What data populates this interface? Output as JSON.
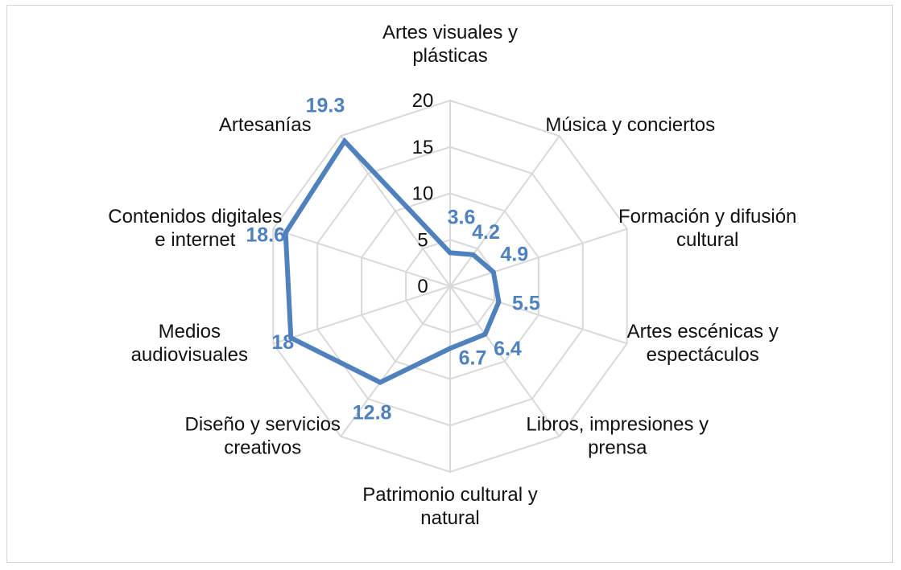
{
  "chart_data": {
    "type": "radar",
    "title": "",
    "categories": [
      "Artes visuales y plásticas",
      "Música y conciertos",
      "Formación y difusión cultural",
      "Artes escénicas y espectáculos",
      "Libros, impresiones y prensa",
      "Patrimonio cultural y natural",
      "Diseño y servicios creativos",
      "Medios audiovisuales",
      "Contenidos digitales e internet",
      "Artesanías"
    ],
    "category_lines": [
      [
        "Artes visuales y",
        "plásticas"
      ],
      [
        "Música y conciertos"
      ],
      [
        "Formación y difusión",
        "cultural"
      ],
      [
        "Artes escénicas y",
        "espectáculos"
      ],
      [
        "Libros, impresiones y",
        "prensa"
      ],
      [
        "Patrimonio cultural y",
        "natural"
      ],
      [
        "Diseño y servicios",
        "creativos"
      ],
      [
        "Medios",
        "audiovisuales"
      ],
      [
        "Contenidos digitales",
        "e internet"
      ],
      [
        "Artesanías"
      ]
    ],
    "values": [
      3.6,
      4.2,
      4.9,
      5.5,
      6.4,
      6.7,
      12.8,
      18,
      18.6,
      19.3
    ],
    "value_labels": [
      "3.6",
      "4.2",
      "4.9",
      "5.5",
      "6.4",
      "6.7",
      "12.8",
      "18",
      "18.6",
      "19.3"
    ],
    "rlim": [
      0,
      20
    ],
    "rticks": [
      0,
      5,
      10,
      15,
      20
    ],
    "rtick_labels": [
      "0",
      "5",
      "10",
      "15",
      "20"
    ],
    "series_color": "#4f81bd",
    "label_color": "#4f81bd",
    "grid_color": "#d9d9d9"
  }
}
